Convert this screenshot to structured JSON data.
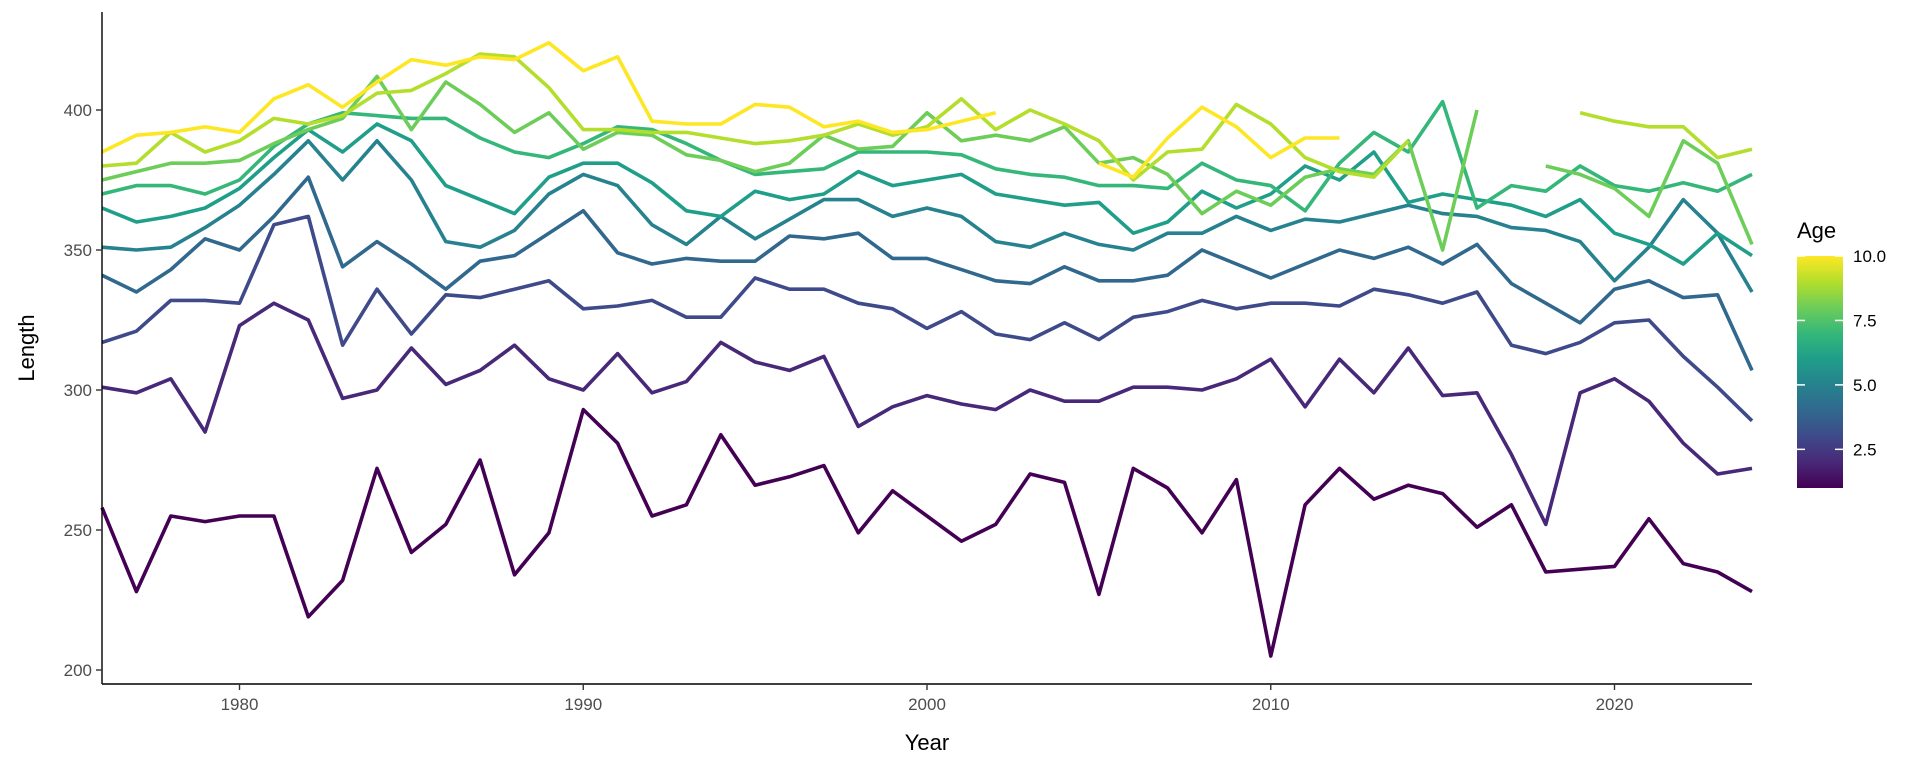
{
  "chart_data": {
    "type": "line",
    "xlabel": "Year",
    "ylabel": "Length",
    "xlim": [
      1976,
      2024
    ],
    "ylim": [
      195,
      435
    ],
    "x_ticks": [
      1980,
      1990,
      2000,
      2010,
      2020
    ],
    "y_ticks": [
      200,
      250,
      300,
      350,
      400
    ],
    "grid": false,
    "legend": {
      "title": "Age",
      "position": "right",
      "type": "colorbar",
      "range": [
        1,
        10
      ],
      "ticks": [
        2.5,
        5.0,
        7.5,
        10.0
      ],
      "tick_labels": [
        "2.5",
        "5.0",
        "7.5",
        "10.0"
      ]
    },
    "palette": [
      "#440154",
      "#482878",
      "#3E4A89",
      "#31688E",
      "#26828E",
      "#1F9E89",
      "#35B779",
      "#6DCD59",
      "#B4DE2C",
      "#FDE725"
    ],
    "series": [
      {
        "age": 1,
        "start": 1976,
        "values": [
          258,
          228,
          255,
          253,
          255,
          255,
          219,
          232,
          272,
          242,
          252,
          275,
          234,
          249,
          293,
          281,
          255,
          259,
          284,
          266,
          269,
          273,
          249,
          264,
          255,
          246,
          252,
          270,
          267,
          227,
          272,
          265,
          249,
          268,
          205,
          259,
          272,
          261,
          266,
          263,
          251,
          259,
          235,
          236,
          237,
          254,
          238,
          235,
          228
        ]
      },
      {
        "age": 2,
        "start": 1976,
        "values": [
          301,
          299,
          304,
          285,
          323,
          331,
          325,
          297,
          300,
          315,
          302,
          307,
          316,
          304,
          300,
          313,
          299,
          303,
          317,
          310,
          307,
          312,
          287,
          294,
          298,
          295,
          293,
          300,
          296,
          296,
          301,
          301,
          300,
          304,
          311,
          294,
          311,
          299,
          315,
          298,
          299,
          277,
          252,
          299,
          304,
          296,
          281,
          270,
          272
        ]
      },
      {
        "age": 3,
        "start": 1976,
        "values": [
          317,
          321,
          332,
          332,
          331,
          359,
          362,
          316,
          336,
          320,
          334,
          333,
          336,
          339,
          329,
          330,
          332,
          326,
          326,
          340,
          336,
          336,
          331,
          329,
          322,
          328,
          320,
          318,
          324,
          318,
          326,
          328,
          332,
          329,
          331,
          331,
          330,
          336,
          334,
          331,
          335,
          316,
          313,
          317,
          324,
          325,
          312,
          301,
          289
        ]
      },
      {
        "age": 4,
        "start": 1976,
        "values": [
          341,
          335,
          343,
          354,
          350,
          362,
          376,
          344,
          353,
          345,
          336,
          346,
          348,
          356,
          364,
          349,
          345,
          347,
          346,
          346,
          355,
          354,
          356,
          347,
          347,
          343,
          339,
          338,
          344,
          339,
          339,
          341,
          350,
          345,
          340,
          345,
          350,
          347,
          351,
          345,
          352,
          338,
          331,
          324,
          336,
          339,
          333,
          334,
          307
        ]
      },
      {
        "age": 5,
        "start": 1976,
        "values": [
          351,
          350,
          351,
          358,
          366,
          377,
          389,
          375,
          389,
          375,
          353,
          351,
          357,
          370,
          377,
          373,
          359,
          352,
          362,
          354,
          361,
          368,
          368,
          362,
          365,
          362,
          353,
          351,
          356,
          352,
          350,
          356,
          356,
          362,
          357,
          361,
          360,
          363,
          366,
          363,
          362,
          358,
          357,
          353,
          339,
          351,
          368,
          356,
          335
        ]
      },
      {
        "age": 6,
        "start": 1976,
        "values": [
          365,
          360,
          362,
          365,
          372,
          383,
          393,
          385,
          395,
          389,
          373,
          368,
          363,
          376,
          381,
          381,
          374,
          364,
          362,
          371,
          368,
          370,
          378,
          373,
          375,
          377,
          370,
          368,
          366,
          367,
          356,
          360,
          371,
          365,
          370,
          380,
          375,
          385,
          367,
          370,
          368,
          366,
          362,
          368,
          356,
          352,
          345,
          356,
          348
        ]
      },
      {
        "age": 7,
        "start": 1976,
        "values": [
          370,
          373,
          373,
          370,
          375,
          387,
          395,
          399,
          398,
          397,
          397,
          390,
          385,
          383,
          388,
          394,
          393,
          388,
          382,
          377,
          378,
          379,
          385,
          385,
          385,
          384,
          379,
          377,
          376,
          373,
          373,
          372,
          381,
          375,
          373,
          364,
          381,
          392,
          385,
          403,
          365,
          373,
          371,
          380,
          373,
          371,
          374,
          371,
          377
        ]
      },
      {
        "age": 8,
        "start": 1976,
        "values": [
          375,
          378,
          381,
          381,
          382,
          388,
          393,
          397,
          412,
          393,
          410,
          402,
          392,
          399,
          386,
          392,
          391,
          384,
          382,
          378,
          381,
          391,
          386,
          387,
          399,
          389,
          391,
          389,
          394,
          381,
          383,
          377,
          363,
          371,
          366,
          376,
          379,
          377,
          389,
          350,
          400,
          null,
          380,
          377,
          372,
          362,
          389,
          381,
          352
        ]
      },
      {
        "age": 9,
        "start": 1976,
        "values": [
          380,
          381,
          392,
          385,
          389,
          397,
          395,
          398,
          406,
          407,
          413,
          420,
          419,
          408,
          393,
          393,
          392,
          392,
          390,
          388,
          389,
          391,
          395,
          391,
          394,
          404,
          393,
          400,
          395,
          389,
          375,
          385,
          386,
          402,
          395,
          383,
          378,
          376,
          389,
          null,
          null,
          null,
          null,
          399,
          396,
          394,
          394,
          383,
          386
        ]
      },
      {
        "age": 10,
        "start": 1976,
        "values": [
          385,
          391,
          392,
          394,
          392,
          404,
          409,
          401,
          410,
          418,
          416,
          419,
          418,
          424,
          414,
          419,
          396,
          395,
          395,
          402,
          401,
          394,
          396,
          392,
          393,
          396,
          399,
          null,
          null,
          381,
          376,
          390,
          401,
          394,
          383,
          390,
          390
        ]
      }
    ]
  }
}
